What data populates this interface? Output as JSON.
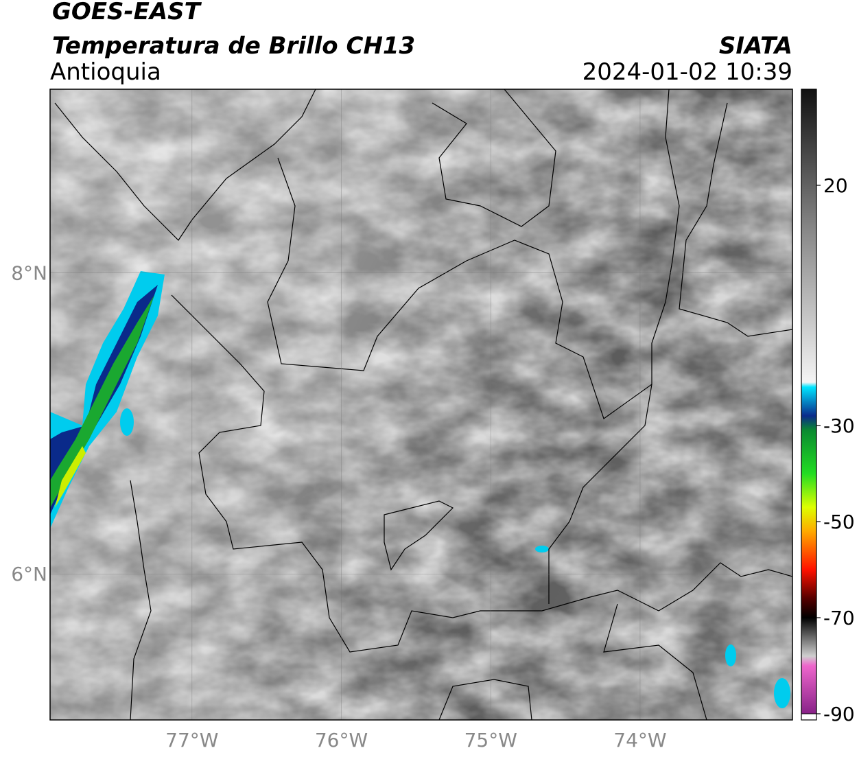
{
  "map": {
    "title": "GOES-EAST",
    "subtitle": "Temperatura de Brillo CH13",
    "region": "Antioquia",
    "source": "SIATA",
    "timestamp": "2024-01-02 10:39",
    "xlim": [
      -77.95,
      -72.98
    ],
    "ylim": [
      5.03,
      9.22
    ],
    "xticks": [
      {
        "value": -77,
        "label": "77°W"
      },
      {
        "value": -76,
        "label": "76°W"
      },
      {
        "value": -75,
        "label": "75°W"
      },
      {
        "value": -74,
        "label": "74°W"
      }
    ],
    "yticks": [
      {
        "value": 8,
        "label": "8°N"
      },
      {
        "value": 6,
        "label": "6°N"
      }
    ],
    "grid": true,
    "colorbar": {
      "lim": [
        -90,
        40
      ],
      "ticks": [
        20,
        -30,
        -50,
        -70,
        -90
      ],
      "stops": [
        {
          "value": 40,
          "color": "#111111"
        },
        {
          "value": 10,
          "color": "#8a8a8a"
        },
        {
          "value": -21,
          "color": "#f4f4f4"
        },
        {
          "value": -22,
          "color": "#00e5ff"
        },
        {
          "value": -28,
          "color": "#0a2a8a"
        },
        {
          "value": -31,
          "color": "#0a8a30"
        },
        {
          "value": -40,
          "color": "#22dd22"
        },
        {
          "value": -47,
          "color": "#ddff00"
        },
        {
          "value": -52,
          "color": "#ffaa00"
        },
        {
          "value": -60,
          "color": "#ff1100"
        },
        {
          "value": -66,
          "color": "#550000"
        },
        {
          "value": -70,
          "color": "#000000"
        },
        {
          "value": -78,
          "color": "#cfcfcf"
        },
        {
          "value": -80,
          "color": "#ee66cc"
        },
        {
          "value": -90,
          "color": "#882288"
        }
      ]
    }
  }
}
